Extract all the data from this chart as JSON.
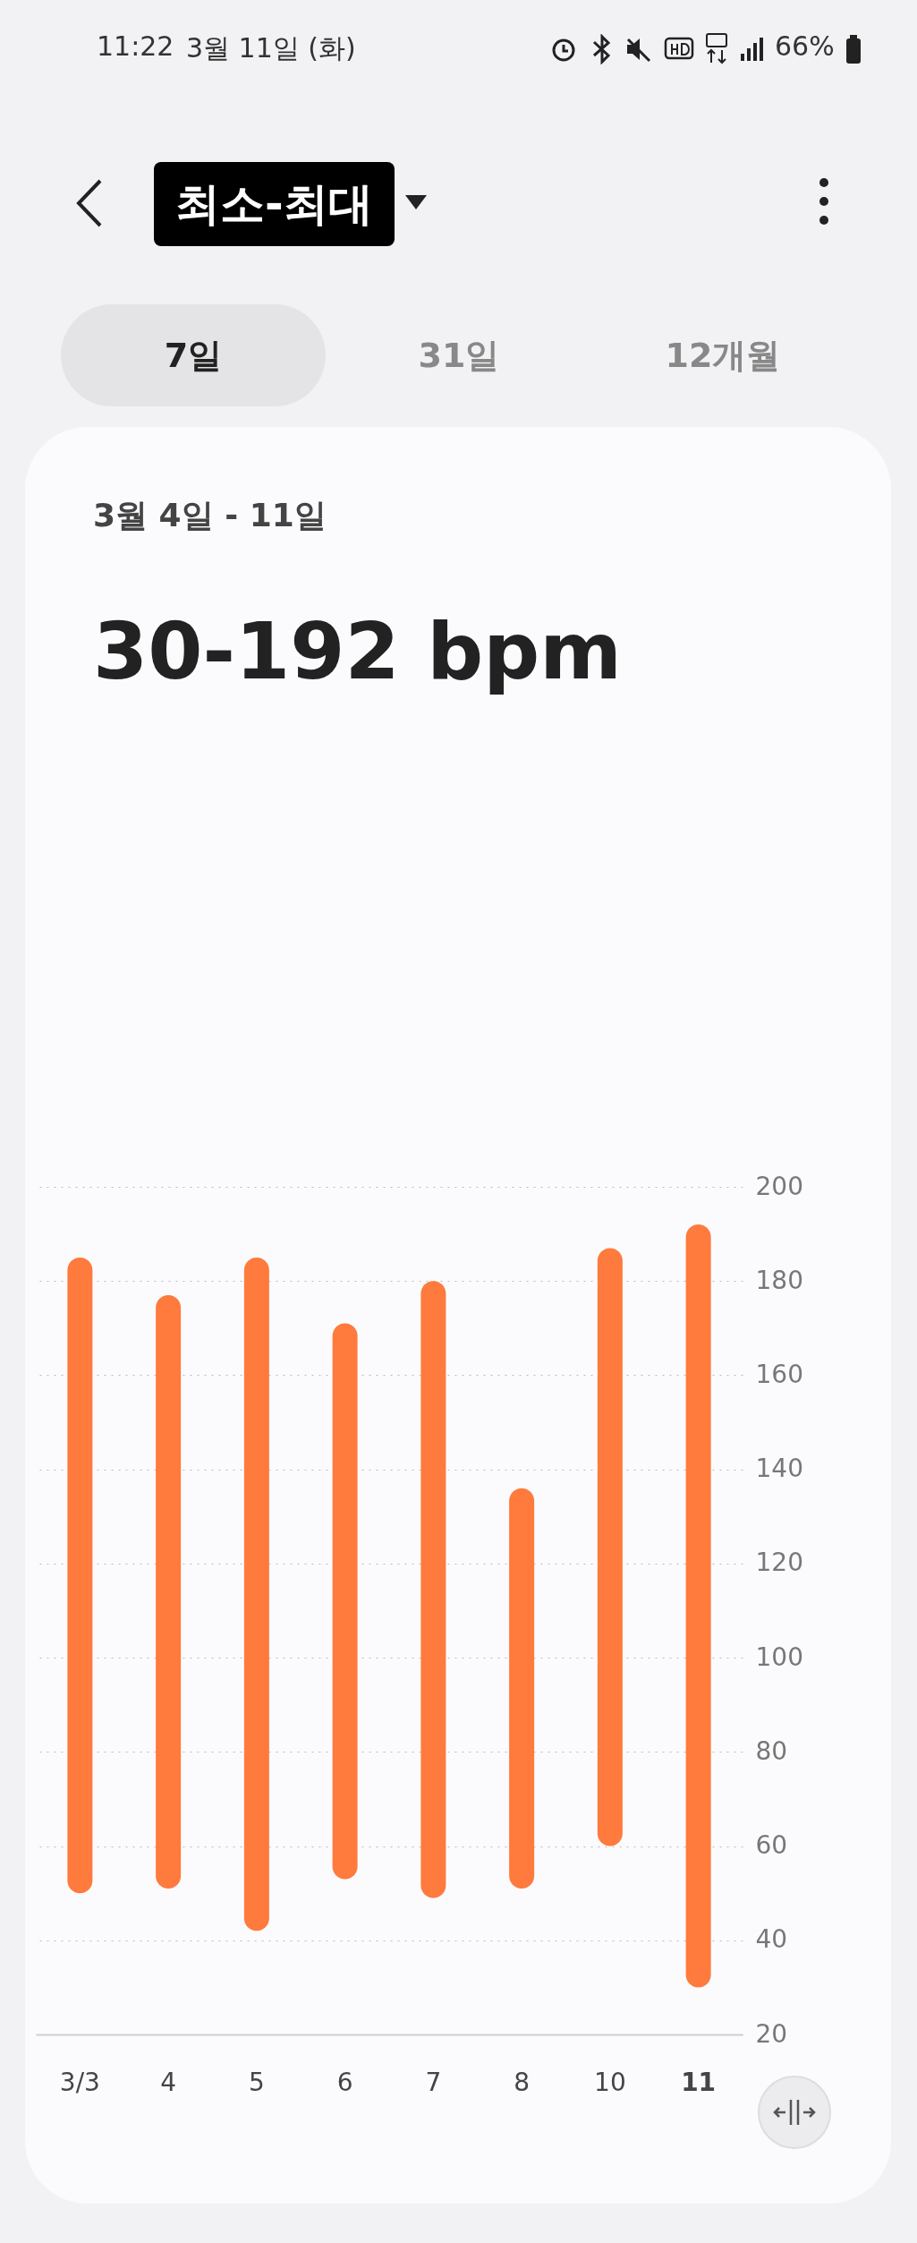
{
  "chart_data": {
    "type": "bar",
    "title": "최소-최대",
    "subtitle": "3월 4일 - 11일",
    "annotations": [
      "30-192 bpm",
      "7일",
      "31일",
      "12개월",
      "11:22",
      "3월 11일 (화)",
      "66%"
    ],
    "categories": [
      "3/3",
      "4",
      "5",
      "6",
      "7",
      "8",
      "10",
      "11"
    ],
    "values": [
      135,
      126,
      143,
      118,
      131,
      85,
      127,
      162
    ],
    "base": [
      50,
      51,
      42,
      53,
      49,
      51,
      60,
      30
    ],
    "color": "#ff7a3d",
    "ylim": [
      20,
      200
    ],
    "yticks": [
      20,
      40,
      60,
      80,
      100,
      120,
      140,
      160,
      180,
      200
    ],
    "grid": "y"
  }
}
